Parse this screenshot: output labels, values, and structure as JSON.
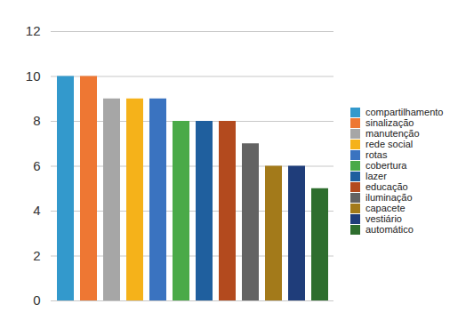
{
  "chart_data": {
    "type": "bar",
    "categories": [
      "compartilhamento",
      "sinalização",
      "manutenção",
      "rede social",
      "rotas",
      "cobertura",
      "lazer",
      "educação",
      "iluminação",
      "capacete",
      "vestiário",
      "automático"
    ],
    "values": [
      10,
      10,
      9,
      9,
      9,
      8,
      8,
      8,
      7,
      6,
      6,
      5
    ],
    "colors": [
      "#3399cc",
      "#ee7733",
      "#a6a6a6",
      "#f5b21a",
      "#3a73c0",
      "#4aaa48",
      "#1f5f9e",
      "#b34a1e",
      "#636363",
      "#a37a1a",
      "#1f3d7a",
      "#2e6e2e"
    ],
    "ylim": [
      0,
      12
    ],
    "yticks": [
      0,
      2,
      4,
      6,
      8,
      10,
      12
    ],
    "grid": true,
    "legend": "right",
    "tick_labels": "y"
  }
}
